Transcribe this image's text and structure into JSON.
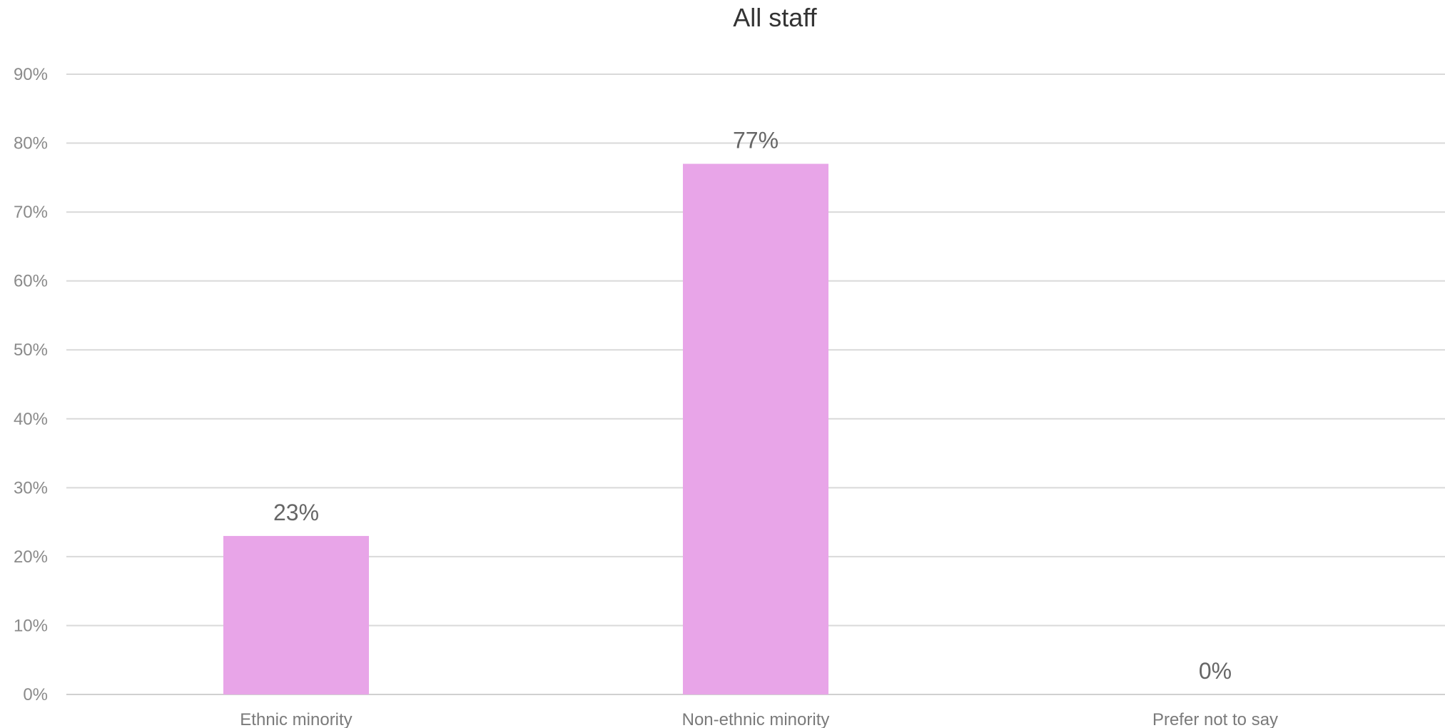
{
  "chart_data": {
    "type": "bar",
    "title": "All staff",
    "categories": [
      "Ethnic minority",
      "Non-ethnic minority",
      "Prefer not to say"
    ],
    "values": [
      23,
      77,
      0
    ],
    "data_labels": [
      "23%",
      "77%",
      "0%"
    ],
    "xlabel": "",
    "ylabel": "",
    "ylim": [
      0,
      90
    ],
    "y_ticks": [
      0,
      10,
      20,
      30,
      40,
      50,
      60,
      70,
      80,
      90
    ],
    "y_tick_labels": [
      "0%",
      "10%",
      "20%",
      "30%",
      "40%",
      "50%",
      "60%",
      "70%",
      "80%",
      "90%"
    ],
    "grid": true,
    "legend": "none",
    "bar_color": "#e8a5e8"
  }
}
